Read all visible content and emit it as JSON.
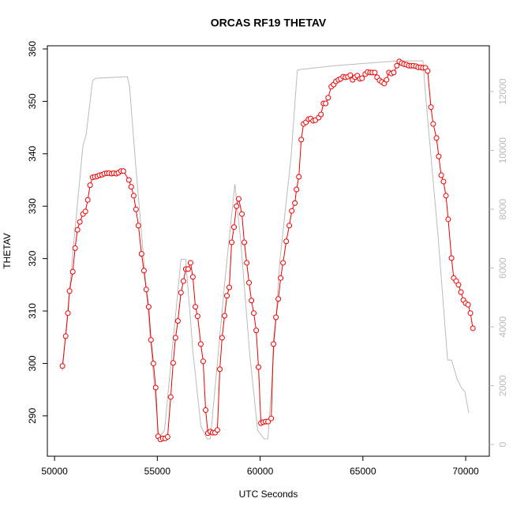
{
  "chart_data": {
    "type": "line",
    "title": "ORCAS RF19 THETAV",
    "x_label": "UTC Seconds",
    "y_label": "THETAV",
    "xlim": [
      49650,
      71150
    ],
    "xticks": [
      50000,
      55000,
      60000,
      65000,
      70000
    ],
    "ylim": [
      282.3,
      360.6
    ],
    "yticks": [
      290,
      300,
      310,
      320,
      330,
      340,
      350,
      360
    ],
    "y2lim": [
      -400,
      13560
    ],
    "y2ticks": [
      0,
      2000,
      4000,
      6000,
      8000,
      10000,
      12000
    ],
    "y2_color": "#bbbbbb",
    "series": [
      {
        "color": "#ee0000",
        "markers": true,
        "x": [
          50385,
          50540,
          50650,
          50730,
          50885,
          51000,
          51115,
          51230,
          51385,
          51500,
          51615,
          51730,
          51850,
          51960,
          52080,
          52190,
          52310,
          52420,
          52540,
          52650,
          52770,
          52880,
          53000,
          53110,
          53230,
          53350,
          53615,
          53730,
          53850,
          53960,
          54080,
          54230,
          54350,
          54460,
          54580,
          54690,
          54810,
          54920,
          55040,
          55150,
          55270,
          55385,
          55500,
          55650,
          55770,
          55885,
          56000,
          56150,
          56270,
          56385,
          56500,
          56615,
          56730,
          56850,
          56960,
          57115,
          57230,
          57350,
          57460,
          57580,
          57690,
          57810,
          57920,
          58040,
          58150,
          58270,
          58385,
          58500,
          58615,
          58730,
          58850,
          58960,
          59115,
          59230,
          59350,
          59460,
          59580,
          59690,
          59810,
          59920,
          60040,
          60150,
          60270,
          60385,
          60540,
          60650,
          60770,
          60885,
          61000,
          61115,
          61270,
          61420,
          61540,
          61690,
          61770,
          61885,
          62000,
          62115,
          62230,
          62350,
          62460,
          62580,
          62690,
          62850,
          62960,
          63080,
          63190,
          63310,
          63460,
          63580,
          63690,
          63810,
          63920,
          64040,
          64150,
          64270,
          64385,
          64500,
          64615,
          64730,
          64850,
          64960,
          65115,
          65230,
          65350,
          65460,
          65580,
          65690,
          65810,
          65920,
          66040,
          66150,
          66270,
          66385,
          66500,
          66650,
          66770,
          66885,
          67000,
          67115,
          67230,
          67350,
          67460,
          67580,
          67690,
          67810,
          67920,
          68040,
          68150,
          68310,
          68420,
          68580,
          68690,
          68810,
          68920,
          69040,
          69150,
          69310,
          69420,
          69540,
          69650,
          69770,
          69885,
          70000,
          70115,
          70230,
          70350
        ],
        "values": [
          299.5,
          305.2,
          309.6,
          313.8,
          317.5,
          322,
          325.5,
          327,
          328.5,
          329,
          331.2,
          334,
          335.5,
          335.6,
          335.7,
          335.9,
          336,
          336.2,
          336.3,
          336.3,
          336.2,
          336.3,
          336.2,
          336.4,
          336.7,
          336.7,
          335,
          333.7,
          332,
          329.4,
          326.3,
          320.9,
          317.7,
          314.1,
          310.8,
          304.5,
          300,
          295.4,
          286.1,
          285.5,
          285.7,
          285.7,
          286,
          293.6,
          300.1,
          304.9,
          308.1,
          313.5,
          315.7,
          318,
          318,
          319.2,
          316.5,
          310.8,
          309,
          303.7,
          300.4,
          291.1,
          286.7,
          287,
          286.8,
          286.8,
          287.3,
          298.9,
          304.9,
          309.1,
          312.9,
          314.5,
          323.1,
          326,
          330,
          331.4,
          328.5,
          323.1,
          319.2,
          315.4,
          312,
          309.6,
          306.3,
          299.3,
          288.6,
          288.8,
          288.9,
          288.9,
          289.5,
          303.7,
          308.8,
          312.3,
          316.3,
          319.2,
          323.3,
          326.3,
          329.1,
          330.6,
          333.2,
          335.6,
          342.7,
          345.7,
          346,
          346.6,
          346.7,
          346.3,
          346.4,
          346.9,
          347.5,
          349.6,
          349.6,
          350.7,
          352.8,
          353.2,
          353.8,
          354.1,
          354.3,
          354.7,
          354.6,
          354.7,
          355,
          354.1,
          354.6,
          354.9,
          354.3,
          354.4,
          355.2,
          355.6,
          355.5,
          355.5,
          355.5,
          354.6,
          354,
          353.7,
          353.4,
          354.1,
          355.5,
          355.3,
          355.5,
          356.8,
          357.6,
          357.3,
          357.1,
          357,
          356.8,
          356.8,
          356.8,
          356.7,
          356.5,
          356.5,
          356.4,
          356.4,
          355.8,
          348.9,
          345.7,
          343,
          339.5,
          335.9,
          334.7,
          332,
          327.5,
          320.1,
          316.3,
          315.7,
          315,
          313.6,
          312.1,
          311.5,
          311.2,
          309.6,
          306.7
        ]
      },
      {
        "color": "#bbbbbb",
        "axis": "y2",
        "markers": false,
        "x": [
          50380,
          50960,
          51380,
          51540,
          51850,
          52000,
          53540,
          53650,
          53920,
          55070,
          55350,
          55770,
          56150,
          56380,
          56730,
          57120,
          57420,
          57580,
          58270,
          58770,
          59040,
          59500,
          59880,
          60190,
          60380,
          60960,
          61500,
          61810,
          61920,
          63650,
          66730,
          67920,
          68080,
          68660,
          69120,
          69310,
          69580,
          69810,
          69960,
          70150
        ],
        "values": [
          2497,
          7060,
          10148,
          10550,
          12376,
          12456,
          12510,
          12160,
          9745,
          215,
          480,
          3570,
          6300,
          6300,
          3170,
          617,
          190,
          190,
          5450,
          8860,
          7060,
          3033,
          483,
          190,
          190,
          6255,
          9745,
          12725,
          12750,
          12886,
          13047,
          13047,
          11624,
          7060,
          2873,
          2873,
          2228,
          1906,
          1800,
          1074
        ]
      }
    ]
  }
}
